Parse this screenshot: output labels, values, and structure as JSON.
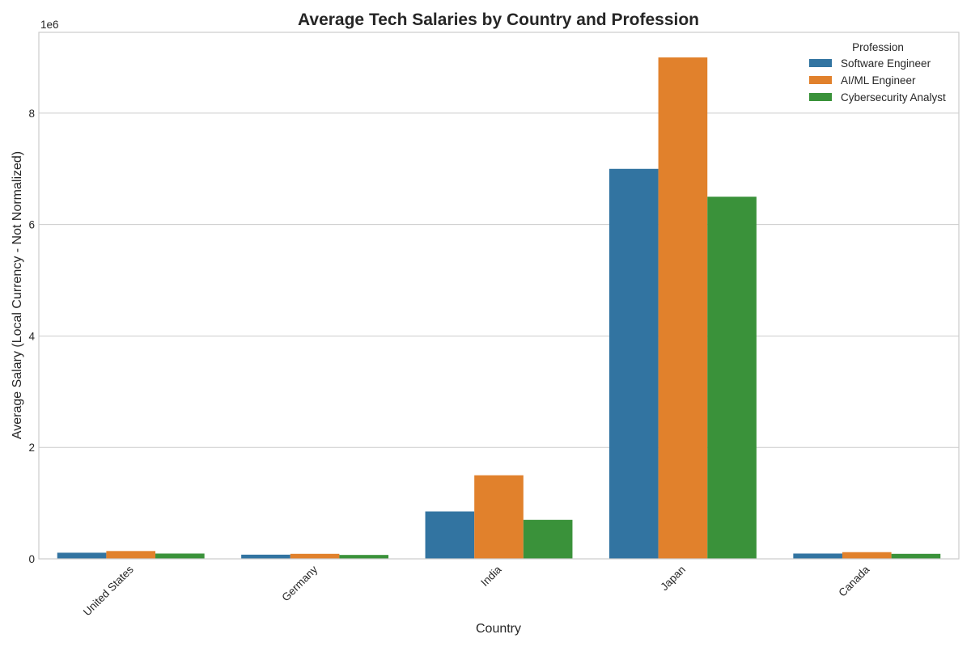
{
  "chart_data": {
    "type": "bar",
    "title": "Average Tech Salaries by Country and Profession",
    "xlabel": "Country",
    "ylabel": "Average Salary (Local Currency - Not Normalized)",
    "offset_label": "1e6",
    "ylim": [
      0,
      9450000
    ],
    "yticks": [
      0,
      2000000,
      4000000,
      6000000,
      8000000
    ],
    "ytick_labels": [
      "0",
      "2",
      "4",
      "6",
      "8"
    ],
    "grid": true,
    "legend": {
      "title": "Profession",
      "position": "top-right"
    },
    "categories": [
      "United States",
      "Germany",
      "India",
      "Japan",
      "Canada"
    ],
    "series": [
      {
        "name": "Software Engineer",
        "color": "#3274a1",
        "values": [
          110000,
          75000,
          850000,
          7000000,
          95000
        ]
      },
      {
        "name": "AI/ML Engineer",
        "color": "#e1812c",
        "values": [
          140000,
          90000,
          1500000,
          9000000,
          120000
        ]
      },
      {
        "name": "Cybersecurity Analyst",
        "color": "#3a923a",
        "values": [
          95000,
          70000,
          700000,
          6500000,
          90000
        ]
      }
    ]
  }
}
